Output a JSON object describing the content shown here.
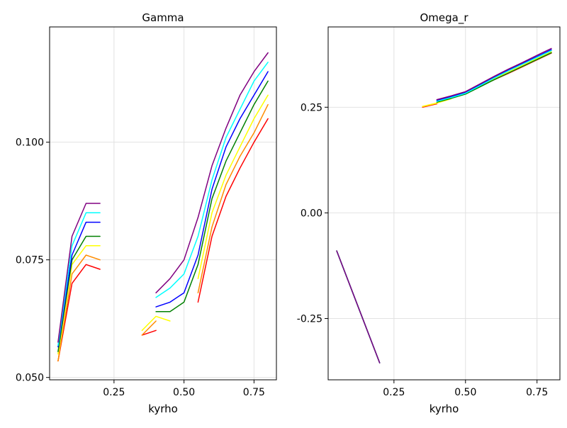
{
  "chart_data": [
    {
      "type": "line",
      "title": "Gamma",
      "xlabel": "kyrho",
      "ylabel": "",
      "xlim": [
        0.02,
        0.83
      ],
      "ylim": [
        0.0495,
        0.1245
      ],
      "xticks": [
        0.25,
        0.5,
        0.75
      ],
      "xtick_labels": [
        "0.25",
        "0.50",
        "0.75"
      ],
      "yticks": [
        0.05,
        0.075,
        0.1
      ],
      "ytick_labels": [
        "0.050",
        "0.075",
        "0.100"
      ],
      "grid": true,
      "series": [
        {
          "color": "#ff0000",
          "segments": [
            [
              [
                0.05,
                0.0535
              ],
              [
                0.1,
                0.07
              ],
              [
                0.15,
                0.074
              ],
              [
                0.2,
                0.073
              ]
            ],
            [
              [
                0.35,
                0.059
              ],
              [
                0.4,
                0.06
              ]
            ],
            [
              [
                0.55,
                0.066
              ],
              [
                0.6,
                0.08
              ],
              [
                0.65,
                0.0885
              ],
              [
                0.7,
                0.0945
              ],
              [
                0.75,
                0.1
              ],
              [
                0.8,
                0.105
              ]
            ]
          ]
        },
        {
          "color": "#ff8c00",
          "segments": [
            [
              [
                0.05,
                0.0535
              ],
              [
                0.1,
                0.072
              ],
              [
                0.15,
                0.076
              ],
              [
                0.2,
                0.075
              ]
            ],
            [
              [
                0.35,
                0.059
              ],
              [
                0.4,
                0.062
              ]
            ],
            [
              [
                0.55,
                0.068
              ],
              [
                0.6,
                0.082
              ],
              [
                0.65,
                0.091
              ],
              [
                0.7,
                0.097
              ],
              [
                0.75,
                0.102
              ],
              [
                0.8,
                0.108
              ]
            ]
          ]
        },
        {
          "color": "#ffff00",
          "segments": [
            [
              [
                0.05,
                0.055
              ],
              [
                0.1,
                0.074
              ],
              [
                0.15,
                0.078
              ],
              [
                0.2,
                0.078
              ]
            ],
            [
              [
                0.35,
                0.06
              ],
              [
                0.4,
                0.063
              ],
              [
                0.45,
                0.062
              ]
            ],
            [
              [
                0.55,
                0.071
              ],
              [
                0.6,
                0.085
              ],
              [
                0.65,
                0.093
              ],
              [
                0.7,
                0.099
              ],
              [
                0.75,
                0.105
              ],
              [
                0.8,
                0.11
              ]
            ]
          ]
        },
        {
          "color": "#008000",
          "segments": [
            [
              [
                0.05,
                0.0555
              ],
              [
                0.1,
                0.075
              ],
              [
                0.15,
                0.08
              ],
              [
                0.2,
                0.08
              ]
            ],
            [
              [
                0.4,
                0.064
              ],
              [
                0.45,
                0.064
              ],
              [
                0.5,
                0.066
              ],
              [
                0.55,
                0.074
              ],
              [
                0.6,
                0.088
              ],
              [
                0.65,
                0.096
              ],
              [
                0.7,
                0.102
              ],
              [
                0.75,
                0.108
              ],
              [
                0.8,
                0.113
              ]
            ]
          ]
        },
        {
          "color": "#0000ff",
          "segments": [
            [
              [
                0.05,
                0.0565
              ],
              [
                0.1,
                0.076
              ],
              [
                0.15,
                0.083
              ],
              [
                0.2,
                0.083
              ]
            ],
            [
              [
                0.4,
                0.065
              ],
              [
                0.45,
                0.066
              ],
              [
                0.5,
                0.068
              ],
              [
                0.55,
                0.076
              ],
              [
                0.6,
                0.09
              ],
              [
                0.65,
                0.099
              ],
              [
                0.7,
                0.105
              ],
              [
                0.75,
                0.11
              ],
              [
                0.8,
                0.115
              ]
            ]
          ]
        },
        {
          "color": "#00ffff",
          "segments": [
            [
              [
                0.05,
                0.0568
              ],
              [
                0.1,
                0.078
              ],
              [
                0.15,
                0.085
              ],
              [
                0.2,
                0.085
              ]
            ],
            [
              [
                0.4,
                0.067
              ],
              [
                0.45,
                0.069
              ],
              [
                0.5,
                0.072
              ],
              [
                0.55,
                0.08
              ],
              [
                0.6,
                0.092
              ],
              [
                0.65,
                0.101
              ],
              [
                0.7,
                0.107
              ],
              [
                0.75,
                0.113
              ],
              [
                0.8,
                0.117
              ]
            ]
          ]
        },
        {
          "color": "#800080",
          "segments": [
            [
              [
                0.05,
                0.0575
              ],
              [
                0.1,
                0.08
              ],
              [
                0.15,
                0.087
              ],
              [
                0.2,
                0.087
              ]
            ],
            [
              [
                0.4,
                0.068
              ],
              [
                0.45,
                0.071
              ],
              [
                0.5,
                0.075
              ],
              [
                0.55,
                0.084
              ],
              [
                0.6,
                0.095
              ],
              [
                0.65,
                0.103
              ],
              [
                0.7,
                0.11
              ],
              [
                0.75,
                0.115
              ],
              [
                0.8,
                0.119
              ]
            ]
          ]
        }
      ]
    },
    {
      "type": "line",
      "title": "Omega_r",
      "xlabel": "kyrho",
      "ylabel": "",
      "xlim": [
        0.02,
        0.83
      ],
      "ylim": [
        -0.395,
        0.44
      ],
      "xticks": [
        0.25,
        0.5,
        0.75
      ],
      "xtick_labels": [
        "0.25",
        "0.50",
        "0.75"
      ],
      "yticks": [
        -0.25,
        0.0,
        0.25
      ],
      "ytick_labels": [
        "-0.25",
        "0.00",
        "0.25"
      ],
      "grid": true,
      "series": [
        {
          "color": "#ff0000",
          "segments": [
            [
              [
                0.05,
                -0.09
              ],
              [
                0.2,
                -0.355
              ]
            ],
            [
              [
                0.35,
                0.25
              ],
              [
                0.4,
                0.258
              ]
            ],
            [
              [
                0.55,
                0.3
              ],
              [
                0.6,
                0.315
              ],
              [
                0.65,
                0.33
              ],
              [
                0.7,
                0.346
              ],
              [
                0.75,
                0.362
              ],
              [
                0.8,
                0.378
              ]
            ]
          ]
        },
        {
          "color": "#ff8c00",
          "segments": [
            [
              [
                0.05,
                -0.09
              ],
              [
                0.2,
                -0.355
              ]
            ],
            [
              [
                0.35,
                0.251
              ],
              [
                0.4,
                0.259
              ]
            ],
            [
              [
                0.55,
                0.301
              ],
              [
                0.6,
                0.316
              ],
              [
                0.65,
                0.331
              ],
              [
                0.7,
                0.347
              ],
              [
                0.75,
                0.363
              ],
              [
                0.8,
                0.379
              ]
            ]
          ]
        },
        {
          "color": "#ffff00",
          "segments": [
            [
              [
                0.05,
                -0.09
              ],
              [
                0.2,
                -0.355
              ]
            ],
            [
              [
                0.35,
                0.252
              ],
              [
                0.4,
                0.26
              ],
              [
                0.45,
                0.27
              ]
            ],
            [
              [
                0.55,
                0.302
              ],
              [
                0.6,
                0.318
              ],
              [
                0.65,
                0.333
              ],
              [
                0.7,
                0.349
              ],
              [
                0.75,
                0.365
              ],
              [
                0.8,
                0.381
              ]
            ]
          ]
        },
        {
          "color": "#008000",
          "segments": [
            [
              [
                0.05,
                -0.09
              ],
              [
                0.2,
                -0.355
              ]
            ],
            [
              [
                0.4,
                0.262
              ],
              [
                0.45,
                0.271
              ],
              [
                0.5,
                0.281
              ],
              [
                0.55,
                0.298
              ],
              [
                0.6,
                0.315
              ],
              [
                0.65,
                0.331
              ],
              [
                0.7,
                0.347
              ],
              [
                0.75,
                0.363
              ],
              [
                0.8,
                0.379
              ]
            ]
          ]
        },
        {
          "color": "#0000ff",
          "segments": [
            [
              [
                0.05,
                -0.09
              ],
              [
                0.2,
                -0.355
              ]
            ],
            [
              [
                0.4,
                0.266
              ],
              [
                0.45,
                0.275
              ],
              [
                0.5,
                0.285
              ],
              [
                0.55,
                0.303
              ],
              [
                0.6,
                0.321
              ],
              [
                0.65,
                0.338
              ],
              [
                0.7,
                0.354
              ],
              [
                0.75,
                0.37
              ],
              [
                0.8,
                0.386
              ]
            ]
          ]
        },
        {
          "color": "#00ffff",
          "segments": [
            [
              [
                0.05,
                -0.09
              ],
              [
                0.2,
                -0.355
              ]
            ],
            [
              [
                0.4,
                0.264
              ],
              [
                0.45,
                0.273
              ],
              [
                0.5,
                0.283
              ],
              [
                0.55,
                0.301
              ],
              [
                0.6,
                0.319
              ],
              [
                0.65,
                0.336
              ],
              [
                0.7,
                0.352
              ],
              [
                0.75,
                0.368
              ],
              [
                0.8,
                0.384
              ]
            ]
          ]
        },
        {
          "color": "#800080",
          "segments": [
            [
              [
                0.05,
                -0.09
              ],
              [
                0.2,
                -0.355
              ]
            ],
            [
              [
                0.4,
                0.268
              ],
              [
                0.45,
                0.277
              ],
              [
                0.5,
                0.287
              ],
              [
                0.55,
                0.305
              ],
              [
                0.6,
                0.323
              ],
              [
                0.65,
                0.34
              ],
              [
                0.7,
                0.356
              ],
              [
                0.75,
                0.373
              ],
              [
                0.8,
                0.389
              ]
            ]
          ]
        }
      ]
    }
  ]
}
